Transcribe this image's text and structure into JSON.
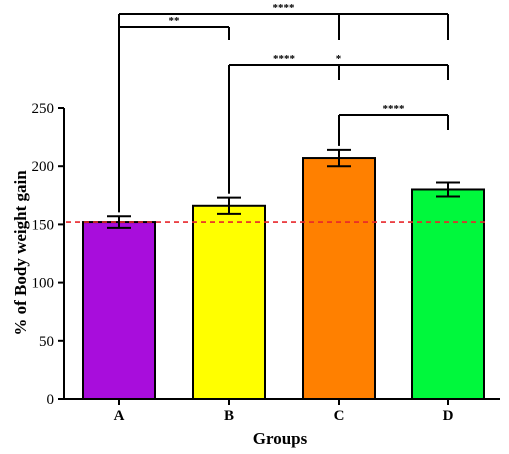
{
  "chart_data": {
    "type": "bar",
    "title": "",
    "xlabel": "Groups",
    "ylabel": "% of Body weight gain",
    "categories": [
      "A",
      "B",
      "C",
      "D"
    ],
    "values": [
      152,
      166,
      207,
      180
    ],
    "errors": [
      5,
      7,
      7,
      6
    ],
    "colors": [
      "#a80ddc",
      "#ffff00",
      "#ff8000",
      "#00f83c"
    ],
    "ylim": [
      0,
      250
    ],
    "yticks": [
      0,
      50,
      100,
      150,
      200,
      250
    ],
    "reference_line": {
      "value": 152,
      "color": "#e8262a",
      "style": "dashed"
    },
    "grid": false,
    "legend": "none",
    "significance": [
      {
        "from": "A",
        "to": [
          "B"
        ],
        "label": "**"
      },
      {
        "from": "A",
        "to": [
          "C",
          "D"
        ],
        "label": "****"
      },
      {
        "from": "B",
        "to": [
          "C"
        ],
        "label": "****"
      },
      {
        "from": "B",
        "to": [
          "D"
        ],
        "label": "*"
      },
      {
        "from": "C",
        "to": [
          "D"
        ],
        "label": "****"
      }
    ]
  }
}
